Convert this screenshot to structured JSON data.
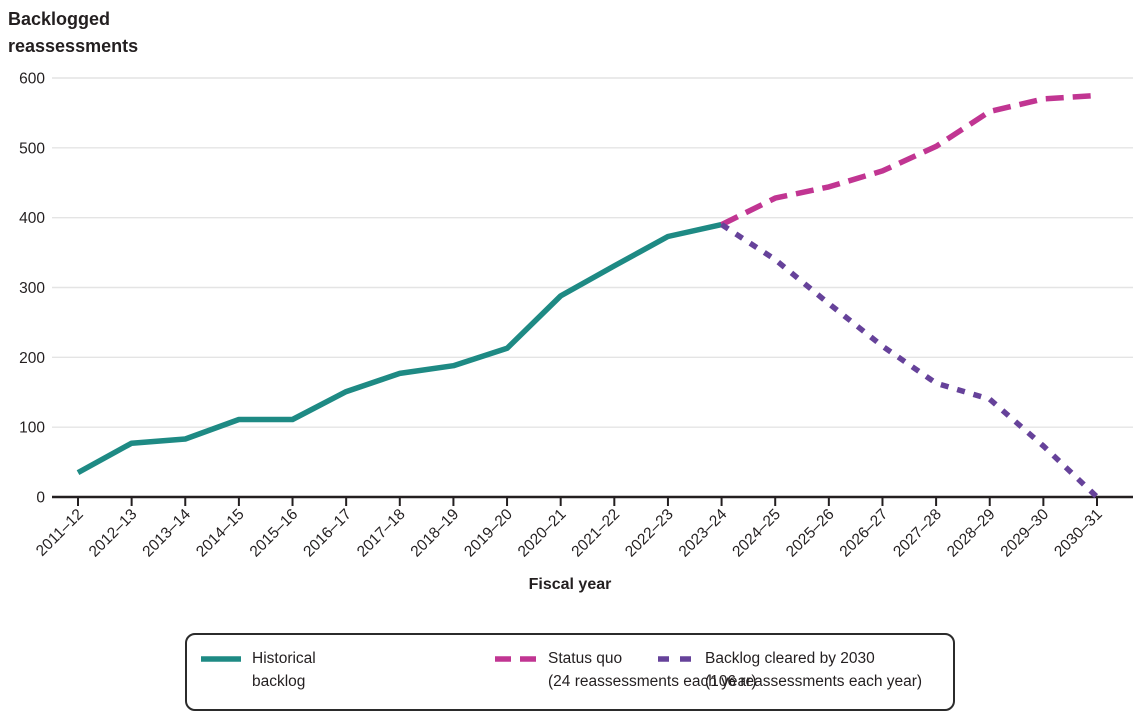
{
  "title": "Backlogged reassessments",
  "xlabel": "Fiscal year",
  "colors": {
    "historical": "#1e8a84",
    "status_quo": "#c13592",
    "cleared": "#66429a",
    "grid": "#e4e4e4",
    "axis": "#231f20",
    "text": "#231f20"
  },
  "chart_data": {
    "type": "line",
    "title": "Backlogged reassessments",
    "xlabel": "Fiscal year",
    "ylabel": "Backlogged reassessments",
    "ylim": [
      0,
      600
    ],
    "yticks": [
      0,
      100,
      200,
      300,
      400,
      500,
      600
    ],
    "grid": "horizontal",
    "legend_position": "bottom",
    "categories": [
      "2011–12",
      "2012–13",
      "2013–14",
      "2014–15",
      "2015–16",
      "2016–17",
      "2017–18",
      "2018–19",
      "2019–20",
      "2020–21",
      "2021–22",
      "2022–23",
      "2023–24",
      "2024–25",
      "2025–26",
      "2026–27",
      "2027–28",
      "2028–29",
      "2029–30",
      "2030–31"
    ],
    "series": [
      {
        "name": "Historical backlog",
        "color": "#1e8a84",
        "style": "solid",
        "values": [
          35,
          77,
          83,
          111,
          111,
          151,
          177,
          188,
          213,
          288,
          331,
          373,
          390,
          null,
          null,
          null,
          null,
          null,
          null,
          null
        ]
      },
      {
        "name": "Status quo (24 reassessments each year)",
        "color": "#c13592",
        "style": "dashed",
        "values": [
          null,
          null,
          null,
          null,
          null,
          null,
          null,
          null,
          null,
          null,
          null,
          null,
          390,
          428,
          444,
          467,
          502,
          552,
          570,
          575
        ]
      },
      {
        "name": "Backlog cleared by 2030 (106 reassessments each year)",
        "color": "#66429a",
        "style": "dotted",
        "values": [
          null,
          null,
          null,
          null,
          null,
          null,
          null,
          null,
          null,
          null,
          null,
          null,
          390,
          340,
          277,
          216,
          163,
          140,
          73,
          0
        ]
      }
    ]
  },
  "legend": {
    "items": [
      {
        "line1": "Historical",
        "line2": "backlog"
      },
      {
        "line1": "Status quo",
        "line2": "(24 reassessments each year)"
      },
      {
        "line1": "Backlog cleared by 2030",
        "line2": "(106 reassessments each year)"
      }
    ]
  }
}
